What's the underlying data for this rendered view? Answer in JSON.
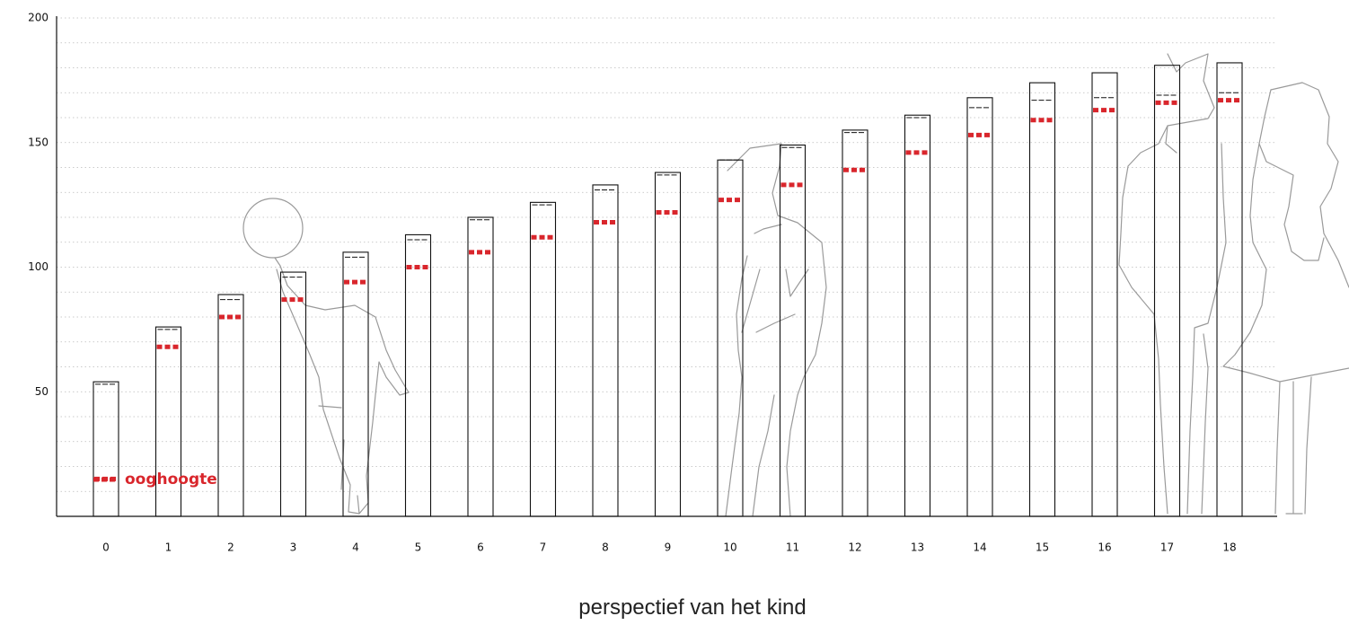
{
  "chart_data": {
    "type": "bar",
    "xlabel": "perspectief van het kind",
    "ylabel": "",
    "ylim": [
      0,
      200
    ],
    "yticks": [
      50,
      100,
      150,
      200
    ],
    "categories": [
      "0",
      "1",
      "2",
      "3",
      "4",
      "5",
      "6",
      "7",
      "8",
      "9",
      "10",
      "11",
      "12",
      "13",
      "14",
      "15",
      "16",
      "17",
      "18"
    ],
    "series": [
      {
        "values": [
          54,
          76,
          89,
          98,
          106,
          113,
          120,
          126,
          133,
          138,
          143,
          149,
          155,
          161,
          168,
          174,
          178,
          181,
          182
        ]
      },
      {
        "values": [
          53,
          75,
          87,
          96,
          104,
          111,
          119,
          125,
          131,
          137,
          143,
          148,
          154,
          160,
          164,
          167,
          168,
          169,
          170
        ]
      },
      {
        "name": "ooghoogte",
        "values": [
          15,
          68,
          80,
          87,
          94,
          100,
          106,
          112,
          118,
          122,
          127,
          133,
          139,
          146,
          153,
          159,
          163,
          166,
          167
        ]
      }
    ],
    "grid": true,
    "legend": "bottom-left"
  },
  "colors": {
    "eye_level": "#d9262c",
    "bar_outline": "#111111",
    "grid": "#bbbbbb",
    "silhouette": "#9a9a9a"
  },
  "icons": [
    "child-balloon-silhouette-icon",
    "teen-silhouette-icon",
    "adult-silhouette-icon",
    "woman-silhouette-icon"
  ]
}
